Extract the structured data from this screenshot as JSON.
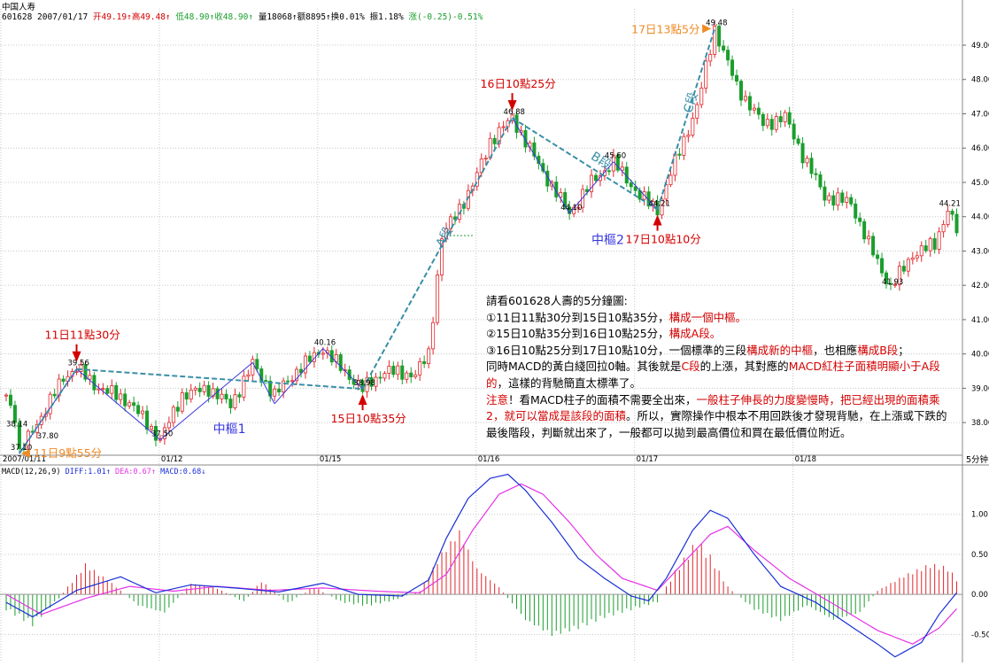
{
  "header": {
    "stock_name": "中国人寿",
    "quote": {
      "code_date": "601628 2007/01/17",
      "open": "开49.19",
      "high": "高49.48",
      "low": "低48.90",
      "close": "收48.90",
      "volume": "量18068",
      "amount": "额8895",
      "turnover": "换0.01%",
      "amplitude": "振1.18%",
      "change": "涨(-0.25)-0.51%"
    },
    "period_label": "5分钟"
  },
  "colors": {
    "up": "#e0262b",
    "down": "#1a9e2d",
    "bi": "#3535e0",
    "segment": "#3a8fa8",
    "diff": "#1a2fd6",
    "dea": "#e632e6",
    "annotation_red": "#d40000",
    "annotation_orange": "#f08a24"
  },
  "chart_data": [
    {
      "type": "candlestick",
      "title": "601628 中国人寿 5分钟",
      "ylim": [
        37.1,
        49.8
      ],
      "yticks": [
        38.0,
        39.0,
        40.0,
        41.0,
        42.0,
        43.0,
        44.0,
        45.0,
        46.0,
        47.0,
        48.0,
        49.0
      ],
      "x_date_labels": [
        {
          "bar": 0,
          "label": "2007/01/11"
        },
        {
          "bar": 36,
          "label": "01/12"
        },
        {
          "bar": 72,
          "label": "01/15"
        },
        {
          "bar": 108,
          "label": "01/16"
        },
        {
          "bar": 144,
          "label": "01/17"
        },
        {
          "bar": 180,
          "label": "01/18"
        }
      ],
      "close_path": [
        {
          "bar": 0,
          "close": 38.8
        },
        {
          "bar": 2,
          "close": 38.2
        },
        {
          "bar": 3,
          "close": 37.1
        },
        {
          "bar": 8,
          "close": 38.2
        },
        {
          "bar": 13,
          "close": 39.3
        },
        {
          "bar": 16,
          "close": 39.6
        },
        {
          "bar": 20,
          "close": 39.1
        },
        {
          "bar": 28,
          "close": 38.6
        },
        {
          "bar": 35,
          "close": 37.5
        },
        {
          "bar": 40,
          "close": 38.8
        },
        {
          "bar": 46,
          "close": 39.0
        },
        {
          "bar": 51,
          "close": 38.5
        },
        {
          "bar": 56,
          "close": 39.7
        },
        {
          "bar": 61,
          "close": 38.8
        },
        {
          "bar": 66,
          "close": 39.5
        },
        {
          "bar": 72,
          "close": 40.16
        },
        {
          "bar": 76,
          "close": 39.6
        },
        {
          "bar": 81,
          "close": 38.98
        },
        {
          "bar": 86,
          "close": 39.5
        },
        {
          "bar": 93,
          "close": 39.4
        },
        {
          "bar": 96,
          "close": 40.0
        },
        {
          "bar": 99,
          "close": 43.4
        },
        {
          "bar": 106,
          "close": 44.9
        },
        {
          "bar": 110,
          "close": 46.2
        },
        {
          "bar": 115,
          "close": 46.88
        },
        {
          "bar": 122,
          "close": 45.3
        },
        {
          "bar": 128,
          "close": 44.1
        },
        {
          "bar": 133,
          "close": 45.0
        },
        {
          "bar": 138,
          "close": 45.6
        },
        {
          "bar": 144,
          "close": 44.6
        },
        {
          "bar": 148,
          "close": 44.21
        },
        {
          "bar": 152,
          "close": 45.6
        },
        {
          "bar": 157,
          "close": 47.2
        },
        {
          "bar": 161,
          "close": 49.48
        },
        {
          "bar": 166,
          "close": 47.8
        },
        {
          "bar": 172,
          "close": 46.7
        },
        {
          "bar": 177,
          "close": 46.9
        },
        {
          "bar": 181,
          "close": 45.8
        },
        {
          "bar": 186,
          "close": 44.6
        },
        {
          "bar": 192,
          "close": 44.4
        },
        {
          "bar": 196,
          "close": 43.2
        },
        {
          "bar": 201,
          "close": 41.93
        },
        {
          "bar": 206,
          "close": 42.9
        },
        {
          "bar": 211,
          "close": 43.2
        },
        {
          "bar": 214,
          "close": 44.21
        },
        {
          "bar": 216,
          "close": 43.6
        }
      ],
      "price_labels": [
        {
          "bar": 2,
          "price": 38.14,
          "text": "38.14"
        },
        {
          "bar": 3,
          "price": 37.1,
          "text": "37.10"
        },
        {
          "bar": 9,
          "price": 37.8,
          "text": "37.80"
        },
        {
          "bar": 16,
          "price": 39.56,
          "text": "39.56"
        },
        {
          "bar": 35,
          "price": 37.5,
          "text": "37.50"
        },
        {
          "bar": 72,
          "price": 40.16,
          "text": "40.16"
        },
        {
          "bar": 81,
          "price": 38.98,
          "text": "38.98"
        },
        {
          "bar": 115,
          "price": 46.88,
          "text": "46.88"
        },
        {
          "bar": 128,
          "price": 44.1,
          "text": "44.10"
        },
        {
          "bar": 138,
          "price": 45.6,
          "text": "45.60"
        },
        {
          "bar": 148,
          "price": 44.21,
          "text": "44.21"
        },
        {
          "bar": 161,
          "price": 49.48,
          "text": "49.48"
        },
        {
          "bar": 201,
          "price": 41.93,
          "text": "41.93"
        },
        {
          "bar": 214,
          "price": 44.21,
          "text": "44.21"
        }
      ],
      "bi_strokes": [
        {
          "from": {
            "bar": 3,
            "price": 37.1
          },
          "to": {
            "bar": 16,
            "price": 39.56
          }
        },
        {
          "from": {
            "bar": 16,
            "price": 39.56
          },
          "to": {
            "bar": 35,
            "price": 37.5
          }
        },
        {
          "from": {
            "bar": 35,
            "price": 37.5
          },
          "to": {
            "bar": 56,
            "price": 39.75
          }
        },
        {
          "from": {
            "bar": 56,
            "price": 39.75
          },
          "to": {
            "bar": 61,
            "price": 38.55
          }
        },
        {
          "from": {
            "bar": 61,
            "price": 38.55
          },
          "to": {
            "bar": 72,
            "price": 40.16
          }
        },
        {
          "from": {
            "bar": 72,
            "price": 40.16
          },
          "to": {
            "bar": 81,
            "price": 38.98
          }
        },
        {
          "from": {
            "bar": 115,
            "price": 46.88
          },
          "to": {
            "bar": 128,
            "price": 44.1
          }
        },
        {
          "from": {
            "bar": 128,
            "price": 44.1
          },
          "to": {
            "bar": 138,
            "price": 45.6
          }
        },
        {
          "from": {
            "bar": 138,
            "price": 45.6
          },
          "to": {
            "bar": 148,
            "price": 44.21
          }
        }
      ],
      "segments": [
        {
          "from": {
            "bar": 3,
            "price": 37.1
          },
          "to": {
            "bar": 16,
            "price": 39.56
          }
        },
        {
          "from": {
            "bar": 16,
            "price": 39.56
          },
          "to": {
            "bar": 81,
            "price": 38.98
          }
        },
        {
          "from": {
            "bar": 81,
            "price": 38.98
          },
          "to": {
            "bar": 115,
            "price": 46.88
          },
          "label": "A段"
        },
        {
          "from": {
            "bar": 115,
            "price": 46.88
          },
          "to": {
            "bar": 148,
            "price": 44.21
          },
          "label": "B段"
        },
        {
          "from": {
            "bar": 148,
            "price": 44.21
          },
          "to": {
            "bar": 161,
            "price": 49.48
          },
          "label": "C段"
        }
      ],
      "reference_line": {
        "price": 43.45,
        "from_bar": 100,
        "to_bar": 106
      },
      "pivot_labels": [
        {
          "bar": 47,
          "price": 37.7,
          "text": "中樞1"
        },
        {
          "bar": 133,
          "price": 43.2,
          "text": "中樞2"
        }
      ],
      "annotations": [
        {
          "text": "11日11點30分",
          "color": "red",
          "bar": 16,
          "price": 39.56,
          "pointer": "down"
        },
        {
          "text": "11日9點55分",
          "color": "orange",
          "bar": 3,
          "price": 37.1,
          "pointer": "left"
        },
        {
          "text": "15日10點35分",
          "color": "red",
          "bar": 81,
          "price": 38.98,
          "pointer": "up"
        },
        {
          "text": "16日10點25分",
          "color": "red",
          "bar": 115,
          "price": 46.88,
          "pointer": "down"
        },
        {
          "text": "17日10點10分",
          "color": "red",
          "bar": 148,
          "price": 44.21,
          "pointer": "up"
        },
        {
          "text": "17日13點5分",
          "color": "orange",
          "bar": 161,
          "price": 49.48,
          "pointer": "right"
        }
      ]
    },
    {
      "type": "macd",
      "title": "MACD(12,26,9)",
      "legend": [
        {
          "name": "DIFF",
          "value": "1.01"
        },
        {
          "name": "DEA",
          "value": "0.67"
        },
        {
          "name": "MACD",
          "value": "0.68"
        }
      ],
      "ylim": [
        -0.85,
        1.55
      ],
      "yticks": [
        -0.5,
        0.0,
        0.5,
        1.0
      ],
      "diff_path": [
        {
          "bar": 0,
          "value": -0.1
        },
        {
          "bar": 6,
          "value": -0.28
        },
        {
          "bar": 16,
          "value": 0.05
        },
        {
          "bar": 26,
          "value": 0.22
        },
        {
          "bar": 34,
          "value": 0.02
        },
        {
          "bar": 42,
          "value": 0.12
        },
        {
          "bar": 52,
          "value": 0.08
        },
        {
          "bar": 62,
          "value": 0.03
        },
        {
          "bar": 72,
          "value": 0.14
        },
        {
          "bar": 80,
          "value": 0.0
        },
        {
          "bar": 90,
          "value": -0.02
        },
        {
          "bar": 96,
          "value": 0.18
        },
        {
          "bar": 100,
          "value": 0.7
        },
        {
          "bar": 105,
          "value": 1.2
        },
        {
          "bar": 110,
          "value": 1.45
        },
        {
          "bar": 114,
          "value": 1.5
        },
        {
          "bar": 118,
          "value": 1.3
        },
        {
          "bar": 124,
          "value": 0.9
        },
        {
          "bar": 130,
          "value": 0.45
        },
        {
          "bar": 136,
          "value": 0.2
        },
        {
          "bar": 142,
          "value": -0.02
        },
        {
          "bar": 146,
          "value": -0.08
        },
        {
          "bar": 150,
          "value": 0.2
        },
        {
          "bar": 156,
          "value": 0.8
        },
        {
          "bar": 160,
          "value": 1.05
        },
        {
          "bar": 164,
          "value": 0.95
        },
        {
          "bar": 170,
          "value": 0.5
        },
        {
          "bar": 176,
          "value": 0.1
        },
        {
          "bar": 184,
          "value": -0.1
        },
        {
          "bar": 192,
          "value": -0.4
        },
        {
          "bar": 198,
          "value": -0.62
        },
        {
          "bar": 202,
          "value": -0.78
        },
        {
          "bar": 208,
          "value": -0.6
        },
        {
          "bar": 212,
          "value": -0.25
        },
        {
          "bar": 216,
          "value": 0.02
        }
      ],
      "dea_path": [
        {
          "bar": 0,
          "value": 0.0
        },
        {
          "bar": 8,
          "value": -0.25
        },
        {
          "bar": 18,
          "value": -0.05
        },
        {
          "bar": 28,
          "value": 0.1
        },
        {
          "bar": 38,
          "value": 0.04
        },
        {
          "bar": 48,
          "value": 0.1
        },
        {
          "bar": 60,
          "value": 0.05
        },
        {
          "bar": 72,
          "value": 0.08
        },
        {
          "bar": 84,
          "value": 0.04
        },
        {
          "bar": 94,
          "value": 0.02
        },
        {
          "bar": 100,
          "value": 0.25
        },
        {
          "bar": 106,
          "value": 0.8
        },
        {
          "bar": 112,
          "value": 1.25
        },
        {
          "bar": 117,
          "value": 1.38
        },
        {
          "bar": 122,
          "value": 1.25
        },
        {
          "bar": 128,
          "value": 0.9
        },
        {
          "bar": 134,
          "value": 0.5
        },
        {
          "bar": 140,
          "value": 0.2
        },
        {
          "bar": 148,
          "value": 0.05
        },
        {
          "bar": 154,
          "value": 0.4
        },
        {
          "bar": 160,
          "value": 0.75
        },
        {
          "bar": 164,
          "value": 0.85
        },
        {
          "bar": 170,
          "value": 0.55
        },
        {
          "bar": 178,
          "value": 0.2
        },
        {
          "bar": 188,
          "value": -0.12
        },
        {
          "bar": 198,
          "value": -0.45
        },
        {
          "bar": 206,
          "value": -0.62
        },
        {
          "bar": 212,
          "value": -0.42
        },
        {
          "bar": 216,
          "value": -0.18
        }
      ],
      "histogram_peaks": [
        {
          "bar": 0,
          "value": -0.2
        },
        {
          "bar": 6,
          "value": -0.4
        },
        {
          "bar": 12,
          "value": -0.05
        },
        {
          "bar": 18,
          "value": 0.4
        },
        {
          "bar": 24,
          "value": 0.15
        },
        {
          "bar": 30,
          "value": -0.15
        },
        {
          "bar": 36,
          "value": -0.25
        },
        {
          "bar": 42,
          "value": 0.15
        },
        {
          "bar": 48,
          "value": 0.08
        },
        {
          "bar": 54,
          "value": -0.1
        },
        {
          "bar": 58,
          "value": 0.18
        },
        {
          "bar": 64,
          "value": -0.12
        },
        {
          "bar": 70,
          "value": 0.1
        },
        {
          "bar": 76,
          "value": -0.1
        },
        {
          "bar": 82,
          "value": -0.15
        },
        {
          "bar": 88,
          "value": -0.08
        },
        {
          "bar": 94,
          "value": 0.05
        },
        {
          "bar": 99,
          "value": 0.55
        },
        {
          "bar": 103,
          "value": 0.85
        },
        {
          "bar": 107,
          "value": 0.35
        },
        {
          "bar": 112,
          "value": 0.1
        },
        {
          "bar": 118,
          "value": -0.35
        },
        {
          "bar": 124,
          "value": -0.55
        },
        {
          "bar": 130,
          "value": -0.45
        },
        {
          "bar": 136,
          "value": -0.3
        },
        {
          "bar": 142,
          "value": -0.2
        },
        {
          "bar": 148,
          "value": -0.1
        },
        {
          "bar": 152,
          "value": 0.3
        },
        {
          "bar": 157,
          "value": 0.7
        },
        {
          "bar": 160,
          "value": 0.5
        },
        {
          "bar": 164,
          "value": 0.1
        },
        {
          "bar": 170,
          "value": -0.2
        },
        {
          "bar": 176,
          "value": -0.35
        },
        {
          "bar": 182,
          "value": -0.15
        },
        {
          "bar": 188,
          "value": -0.35
        },
        {
          "bar": 194,
          "value": -0.25
        },
        {
          "bar": 198,
          "value": 0.05
        },
        {
          "bar": 204,
          "value": 0.25
        },
        {
          "bar": 210,
          "value": 0.4
        },
        {
          "bar": 214,
          "value": 0.35
        },
        {
          "bar": 216,
          "value": 0.2
        }
      ]
    }
  ],
  "notes": {
    "heading": "請看601628人壽的5分鐘圖:",
    "item1_a": "①11日11點30分到15日10點35分，",
    "item1_b": "構成一個中樞。",
    "item2_a": "②15日10點35分到16日10點25分，",
    "item2_b": "構成A段。",
    "item3_a": "③16日10點25分到17日10點10分，一個標準的三段",
    "item3_b": "構成新的中樞",
    "item3_c": "，也相應",
    "item3_d": "構成B段",
    "item3_e": "；",
    "item4_a": "同時MACD的黃白綫回拉0軸。其後就是",
    "item4_b": "C段",
    "item4_c": "的上漲，其對應的",
    "item4_d": "MACD紅柱子面積明顯小于A段的",
    "item4_e": "，這樣的背馳簡直太標準了。",
    "warn_a": "注意",
    "warn_b": "！看MACD柱子的面積不需要全出來，",
    "warn_c": "一般柱子伸長的力度變慢時，把已經出現的面積乘2，就可以當成是該段的面積",
    "warn_d": "。所以，實際操作中根本不用回跌後才發現背馳，在上漲或下跌的最後階段，判斷就出來了，一般都可以拋到最高價位和買在最低價位附近。"
  }
}
